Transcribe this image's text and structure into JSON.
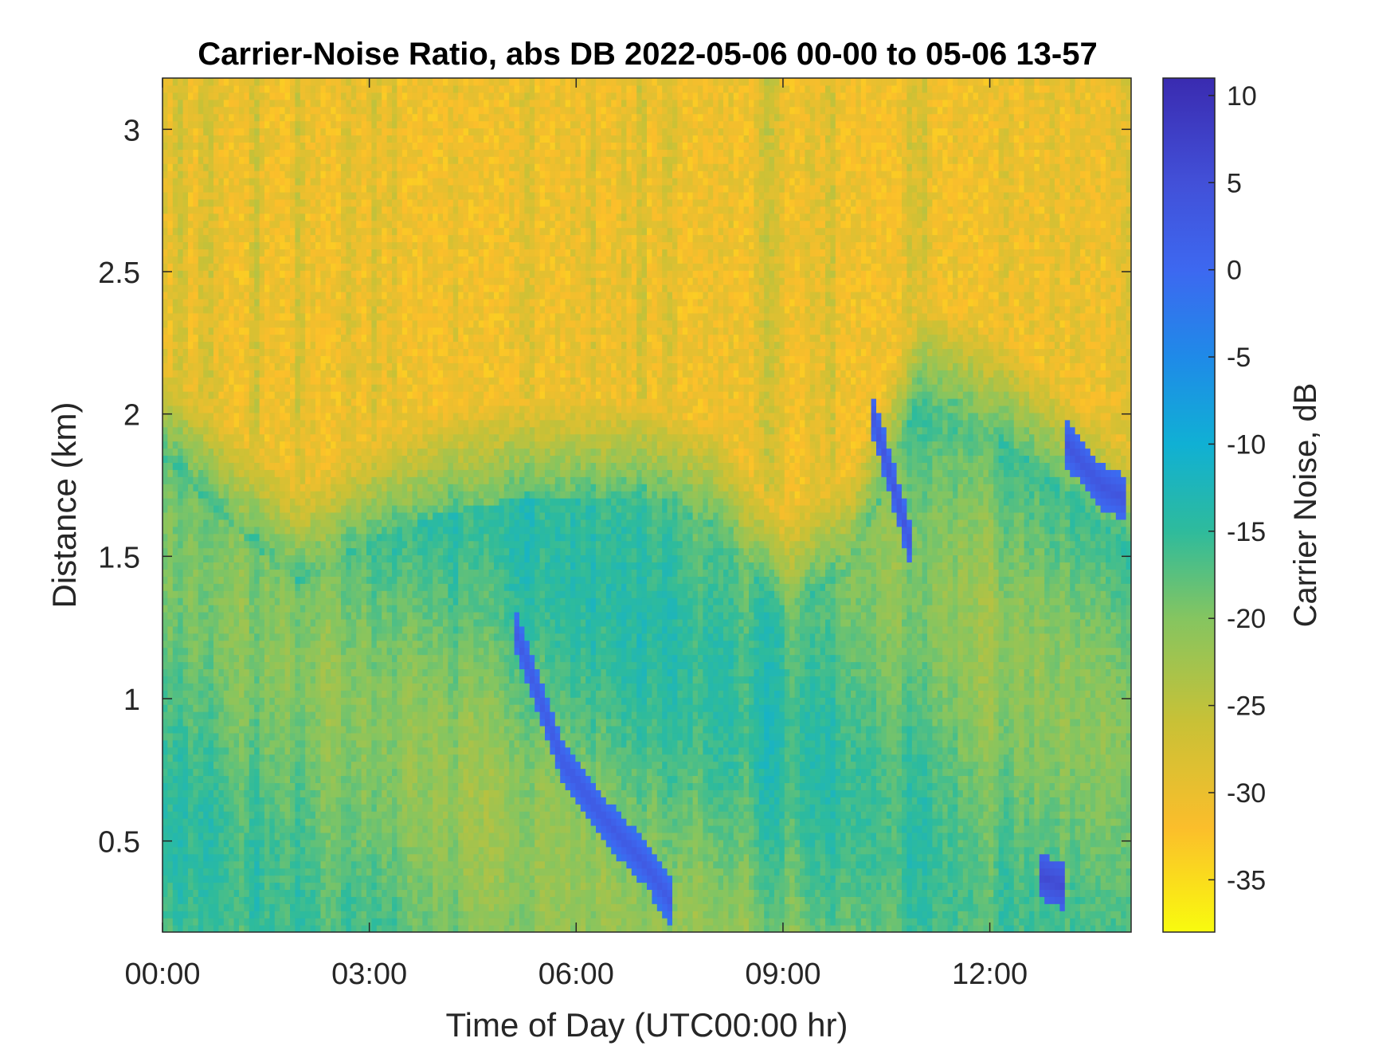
{
  "chart_data": {
    "type": "heatmap",
    "title": "Carrier-Noise Ratio, abs DB 2022-05-06 00-00 to 05-06 13-57",
    "xlabel": "Time of Day (UTC00:00 hr)",
    "ylabel": "Distance (km)",
    "colorbar_label": "Carrier Noise, dB",
    "x_range_hours": [
      0,
      14.05
    ],
    "y_range_km": [
      0.18,
      3.18
    ],
    "c_range_db": [
      -38,
      11
    ],
    "x_ticks": [
      {
        "value": 0,
        "label": "00:00"
      },
      {
        "value": 3,
        "label": "03:00"
      },
      {
        "value": 6,
        "label": "06:00"
      },
      {
        "value": 9,
        "label": "09:00"
      },
      {
        "value": 12,
        "label": "12:00"
      }
    ],
    "y_ticks": [
      {
        "value": 0.5,
        "label": "0.5"
      },
      {
        "value": 1,
        "label": "1"
      },
      {
        "value": 1.5,
        "label": "1.5"
      },
      {
        "value": 2,
        "label": "2"
      },
      {
        "value": 2.5,
        "label": "2.5"
      },
      {
        "value": 3,
        "label": "3"
      }
    ],
    "c_ticks": [
      {
        "value": 10,
        "label": "10"
      },
      {
        "value": 5,
        "label": "5"
      },
      {
        "value": 0,
        "label": "0"
      },
      {
        "value": -5,
        "label": "-5"
      },
      {
        "value": -10,
        "label": "-10"
      },
      {
        "value": -15,
        "label": "-15"
      },
      {
        "value": -20,
        "label": "-20"
      },
      {
        "value": -25,
        "label": "-25"
      },
      {
        "value": -30,
        "label": "-30"
      },
      {
        "value": -35,
        "label": "-35"
      }
    ],
    "colormap": "parula",
    "colormap_stops": [
      {
        "value": -38,
        "color": "#f9fb0e"
      },
      {
        "value": -32,
        "color": "#fbbe2b"
      },
      {
        "value": -26,
        "color": "#c9c136"
      },
      {
        "value": -20,
        "color": "#85c560"
      },
      {
        "value": -15,
        "color": "#2ebb9c"
      },
      {
        "value": -10,
        "color": "#10b0d4"
      },
      {
        "value": -5,
        "color": "#1f8ae8"
      },
      {
        "value": 0,
        "color": "#3d68f0"
      },
      {
        "value": 5,
        "color": "#4250d8"
      },
      {
        "value": 11,
        "color": "#3a2bb0"
      }
    ],
    "boundary_layer_top_km": [
      [
        0,
        2.0
      ],
      [
        1,
        1.75
      ],
      [
        2,
        1.55
      ],
      [
        3,
        1.7
      ],
      [
        4,
        1.8
      ],
      [
        5,
        1.85
      ],
      [
        6,
        1.85
      ],
      [
        7,
        1.85
      ],
      [
        8,
        1.75
      ],
      [
        9,
        1.45
      ],
      [
        10,
        1.6
      ],
      [
        11,
        2.2
      ],
      [
        12,
        2.1
      ],
      [
        13,
        1.9
      ],
      [
        14,
        1.7
      ]
    ],
    "aerosol_layers": [
      {
        "points": [
          [
            5.1,
            1.25
          ],
          [
            5.8,
            0.78
          ],
          [
            6.4,
            0.58
          ],
          [
            7.0,
            0.42
          ],
          [
            7.4,
            0.28
          ]
        ],
        "value_db": 3
      },
      {
        "points": [
          [
            12.7,
            0.38
          ],
          [
            13.1,
            0.34
          ]
        ],
        "value_db": 6
      },
      {
        "points": [
          [
            10.3,
            2.0
          ],
          [
            10.6,
            1.75
          ],
          [
            10.9,
            1.5
          ]
        ],
        "value_db": 4
      },
      {
        "points": [
          [
            13.1,
            1.9
          ],
          [
            13.6,
            1.75
          ],
          [
            14.0,
            1.7
          ]
        ],
        "value_db": 4
      }
    ]
  }
}
